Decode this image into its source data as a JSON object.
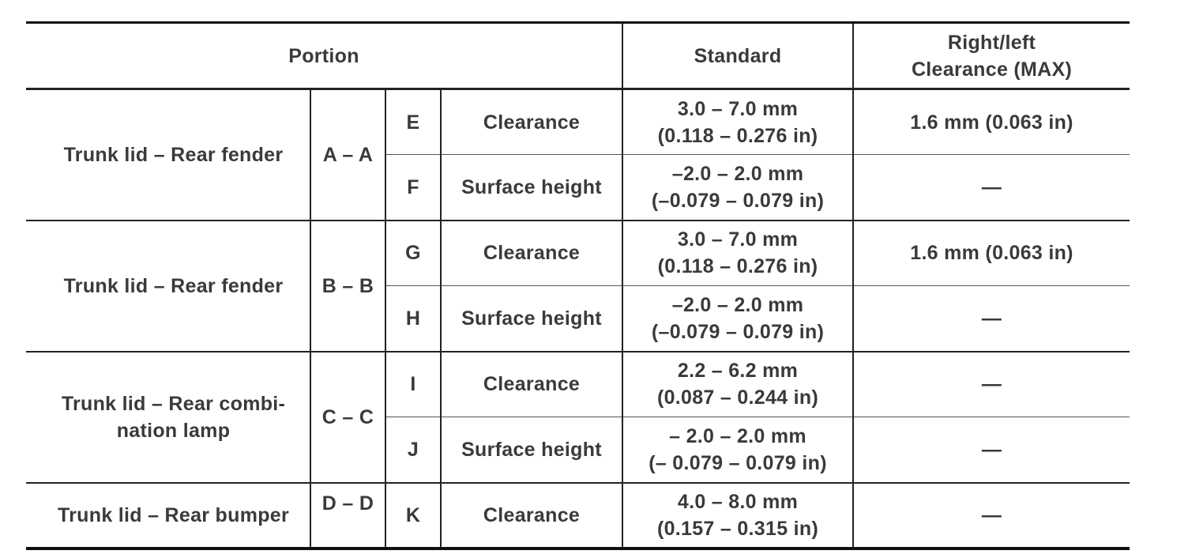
{
  "header": {
    "portion": "Portion",
    "standard": "Standard",
    "max_line1": "Right/left",
    "max_line2": "Clearance (MAX)"
  },
  "groups": [
    {
      "portion": "Trunk lid – Rear fender",
      "section": "A – A",
      "rows": [
        {
          "letter": "E",
          "kind": "Clearance",
          "std_mm": "3.0 – 7.0 mm",
          "std_in": "(0.118 – 0.276 in)",
          "max": "1.6 mm (0.063 in)"
        },
        {
          "letter": "F",
          "kind": "Surface height",
          "std_mm": "–2.0 – 2.0 mm",
          "std_in": "(–0.079 – 0.079 in)",
          "max": "—"
        }
      ]
    },
    {
      "portion": "Trunk lid – Rear fender",
      "section": "B – B",
      "rows": [
        {
          "letter": "G",
          "kind": "Clearance",
          "std_mm": "3.0 – 7.0 mm",
          "std_in": "(0.118 – 0.276 in)",
          "max": "1.6 mm (0.063 in)"
        },
        {
          "letter": "H",
          "kind": "Surface height",
          "std_mm": "–2.0 – 2.0 mm",
          "std_in": "(–0.079 – 0.079 in)",
          "max": "—"
        }
      ]
    },
    {
      "portion_line1": "Trunk lid – Rear combi-",
      "portion_line2": "nation lamp",
      "section": "C – C",
      "rows": [
        {
          "letter": "I",
          "kind": "Clearance",
          "std_mm": "2.2 – 6.2 mm",
          "std_in": "(0.087 – 0.244 in)",
          "max": "—"
        },
        {
          "letter": "J",
          "kind": "Surface height",
          "std_mm": "– 2.0 – 2.0 mm",
          "std_in": "(– 0.079 – 0.079 in)",
          "max": "—"
        }
      ]
    },
    {
      "portion": "Trunk lid – Rear bumper",
      "section": "D – D",
      "rows": [
        {
          "letter": "K",
          "kind": "Clearance",
          "std_mm": "4.0 – 8.0 mm",
          "std_in": "(0.157 – 0.315 in)",
          "max": "—"
        }
      ]
    }
  ]
}
